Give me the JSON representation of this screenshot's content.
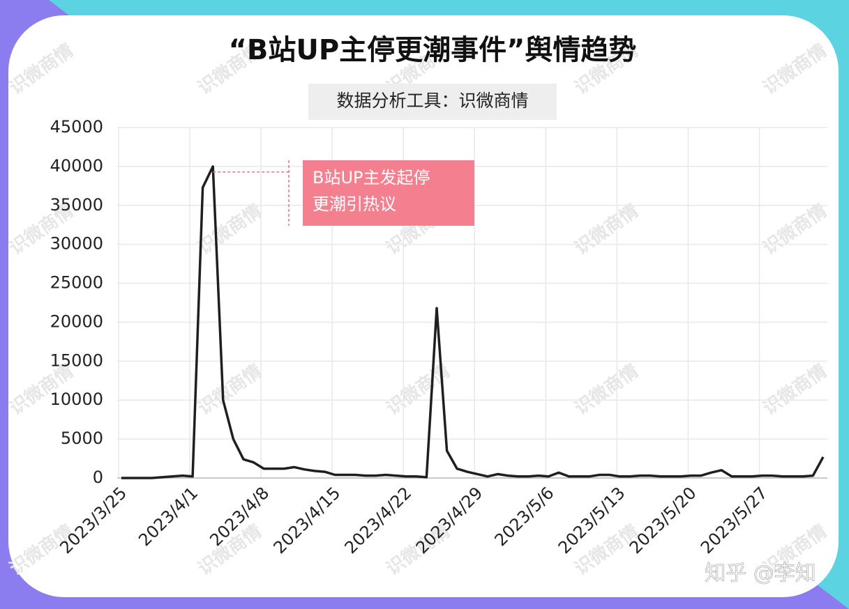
{
  "chart_data": {
    "type": "line",
    "title": "“B站UP主停更潮事件”舆情趋势",
    "subtitle": "数据分析工具：识微商情",
    "watermark": "识微商情",
    "credit": "知乎 @李知",
    "annotation": [
      "B站UP主发起停",
      "更潮引热议"
    ],
    "categories": [
      "2023/3/25",
      null,
      null,
      null,
      null,
      null,
      null,
      "2023/4/1",
      null,
      null,
      null,
      null,
      null,
      null,
      "2023/4/8",
      null,
      null,
      null,
      null,
      null,
      null,
      "2023/4/15",
      null,
      null,
      null,
      null,
      null,
      null,
      "2023/4/22",
      null,
      null,
      null,
      null,
      null,
      null,
      "2023/4/29",
      null,
      null,
      null,
      null,
      null,
      null,
      "2023/5/6",
      null,
      null,
      null,
      null,
      null,
      null,
      "2023/5/13",
      null,
      null,
      null,
      null,
      null,
      null,
      "2023/5/20",
      null,
      null,
      null,
      null,
      null,
      null,
      "2023/5/27",
      null,
      null,
      null,
      null,
      null,
      null
    ],
    "series": [
      {
        "name": null,
        "color": "#1f1f1f",
        "values": [
          0,
          0,
          0,
          0,
          100,
          200,
          300,
          200,
          37300,
          40000,
          10000,
          5000,
          2400,
          2000,
          1200,
          1200,
          1200,
          1400,
          1100,
          900,
          800,
          400,
          400,
          400,
          300,
          300,
          400,
          300,
          200,
          200,
          100,
          21800,
          3500,
          1200,
          800,
          500,
          200,
          500,
          300,
          200,
          200,
          300,
          200,
          700,
          200,
          200,
          200,
          400,
          400,
          200,
          200,
          300,
          300,
          200,
          200,
          200,
          300,
          300,
          700,
          1000,
          200,
          200,
          200,
          300,
          300,
          200,
          200,
          200,
          300,
          2700
        ]
      }
    ],
    "ylim": [
      0,
      45000
    ],
    "yticks": [
      0,
      5000,
      10000,
      15000,
      20000,
      25000,
      30000,
      35000,
      40000,
      45000
    ],
    "grid": true
  }
}
